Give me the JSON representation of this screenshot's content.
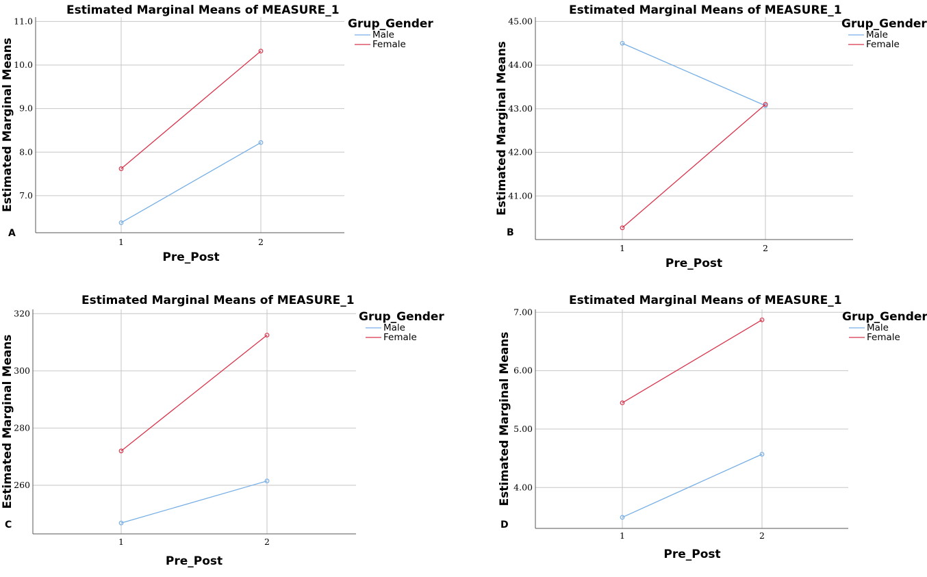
{
  "colors": {
    "male": "#76aee6",
    "female": "#d8344c"
  },
  "chart_data": [
    {
      "panel": "A",
      "type": "line",
      "title": "Estimated Marginal Means of MEASURE_1",
      "xlabel": "Pre_Post",
      "ylabel": "Estimated Marginal Means",
      "legend_title": "Grup_Gender",
      "categories": [
        "1",
        "2"
      ],
      "yticks": [
        "7.0",
        "8.0",
        "9.0",
        "10.0",
        "11.0"
      ],
      "ylim": [
        6.15,
        11.1
      ],
      "series": [
        {
          "name": "Male",
          "values": [
            6.38,
            8.22
          ]
        },
        {
          "name": "Female",
          "values": [
            7.62,
            10.32
          ]
        }
      ]
    },
    {
      "panel": "B",
      "type": "line",
      "title": "Estimated Marginal Means of MEASURE_1",
      "xlabel": "Pre_Post",
      "ylabel": "Estimated Marginal Means",
      "legend_title": "Grup_Gender",
      "categories": [
        "1",
        "2"
      ],
      "yticks": [
        "41.00",
        "42.00",
        "43.00",
        "44.00",
        "45.00"
      ],
      "ylim": [
        40.0,
        45.1
      ],
      "series": [
        {
          "name": "Male",
          "values": [
            44.5,
            43.07
          ]
        },
        {
          "name": "Female",
          "values": [
            40.27,
            43.1
          ]
        }
      ]
    },
    {
      "panel": "C",
      "type": "line",
      "title": "Estimated Marginal Means of MEASURE_1",
      "xlabel": "Pre_Post",
      "ylabel": "Estimated Marginal Means",
      "legend_title": "Grup_Gender",
      "categories": [
        "1",
        "2"
      ],
      "yticks": [
        "260",
        "280",
        "300",
        "320"
      ],
      "ylim": [
        243,
        321.5
      ],
      "series": [
        {
          "name": "Male",
          "values": [
            246.8,
            261.5
          ]
        },
        {
          "name": "Female",
          "values": [
            272.0,
            312.5
          ]
        }
      ]
    },
    {
      "panel": "D",
      "type": "line",
      "title": "Estimated Marginal Means of MEASURE_1",
      "xlabel": "Pre_Post",
      "ylabel": "Estimated Marginal Means",
      "legend_title": "Grup_Gender",
      "categories": [
        "1",
        "2"
      ],
      "yticks": [
        "4.00",
        "5.00",
        "6.00",
        "7.00"
      ],
      "ylim": [
        3.3,
        7.05
      ],
      "series": [
        {
          "name": "Male",
          "values": [
            3.49,
            4.57
          ]
        },
        {
          "name": "Female",
          "values": [
            5.45,
            6.87
          ]
        }
      ]
    }
  ]
}
